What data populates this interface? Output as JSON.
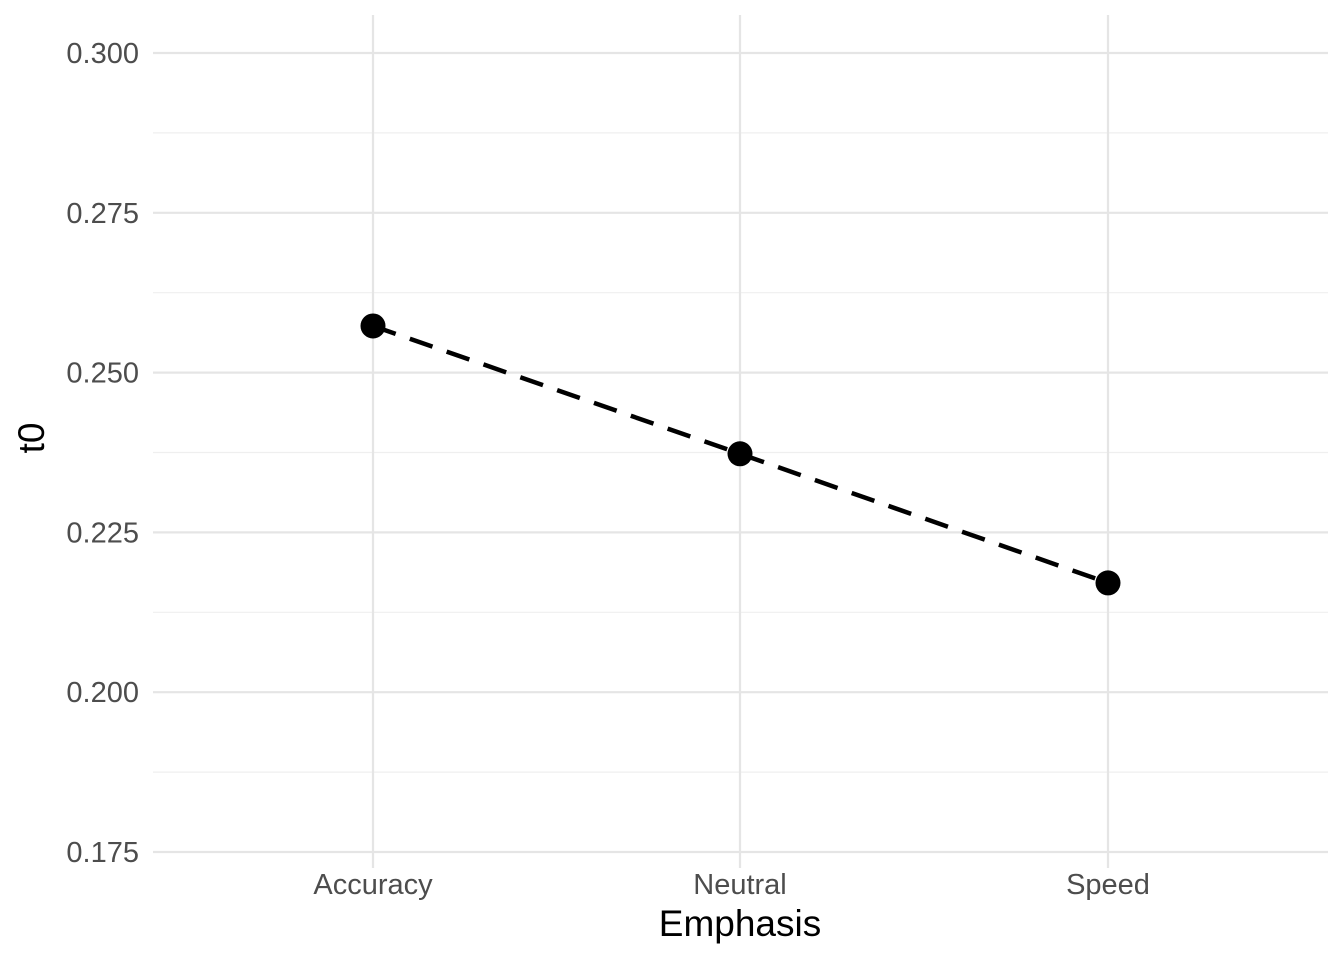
{
  "chart_data": {
    "type": "line",
    "categories": [
      "Accuracy",
      "Neutral",
      "Speed"
    ],
    "series": [
      {
        "values": [
          0.2573,
          0.2373,
          0.2171
        ],
        "line_style": "dashed",
        "marker": "circle",
        "color": "#000000"
      }
    ],
    "xlabel": "Emphasis",
    "ylabel": "t0",
    "ylim": [
      0.175,
      0.3
    ],
    "y_ticks": [
      "0.175",
      "0.200",
      "0.225",
      "0.250",
      "0.275",
      "0.300"
    ],
    "grid": true,
    "background": "#ffffff",
    "grid_color": "#e5e5e5"
  }
}
